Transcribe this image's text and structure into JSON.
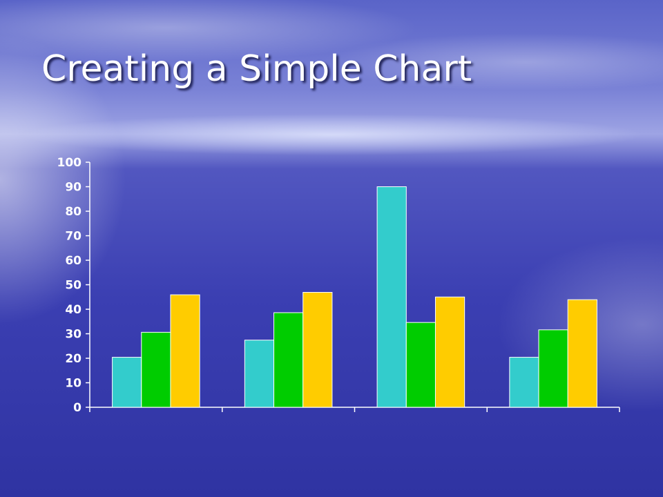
{
  "slide": {
    "title": "Creating a Simple Chart"
  },
  "chart_data": {
    "type": "bar",
    "title": "",
    "xlabel": "",
    "ylabel": "",
    "categories": [
      "",
      "",
      "",
      ""
    ],
    "ylim": [
      0,
      100
    ],
    "yticks": [
      0,
      10,
      20,
      30,
      40,
      50,
      60,
      70,
      80,
      90,
      100
    ],
    "grid": false,
    "legend": "none",
    "series": [
      {
        "values": [
          20.4,
          27.4,
          90,
          20.4
        ],
        "color": "#33cccc"
      },
      {
        "values": [
          30.6,
          38.6,
          34.6,
          31.6
        ],
        "color": "#00cc00"
      },
      {
        "values": [
          45.9,
          46.9,
          45,
          43.9
        ],
        "color": "#ffcc00"
      }
    ]
  }
}
